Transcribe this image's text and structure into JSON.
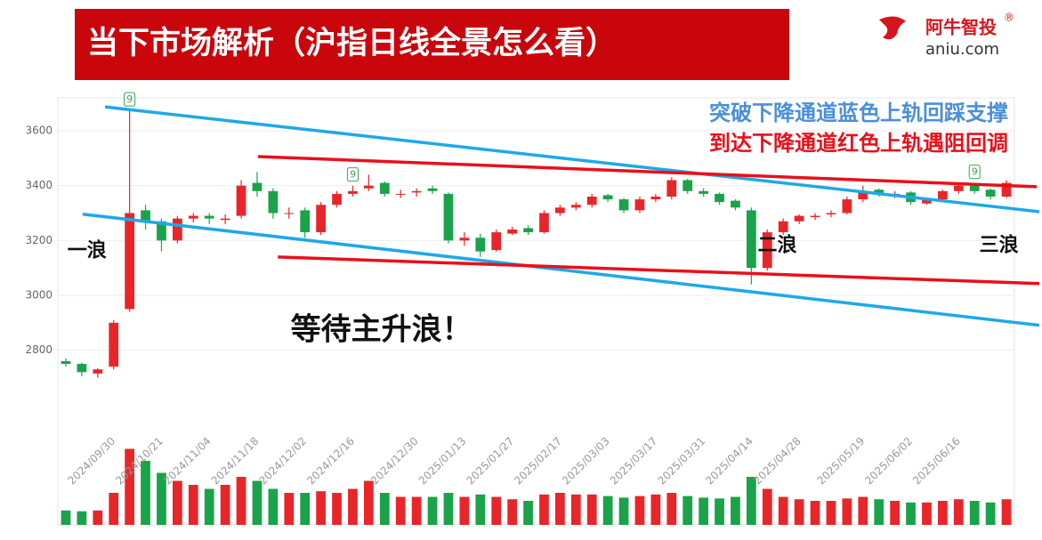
{
  "header": {
    "title": "当下市场解析（沪指日线全景怎么看）",
    "logo": "阿牛智投",
    "logo_mark": "®",
    "site": "aniu.com"
  },
  "chart_data": {
    "type": "candlestick",
    "categories": [
      null,
      null,
      null,
      "2024/09/30",
      null,
      null,
      "2024/10/21",
      null,
      null,
      "2024/11/04",
      null,
      null,
      "2024/11/18",
      null,
      null,
      "2024/12/02",
      null,
      null,
      "2024/12/16",
      null,
      null,
      null,
      "2024/12/30",
      null,
      null,
      "2025/01/13",
      null,
      null,
      "2025/01/27",
      null,
      null,
      "2025/02/17",
      null,
      null,
      "2025/03/03",
      null,
      null,
      "2025/03/17",
      null,
      null,
      "2025/03/31",
      null,
      null,
      "2025/04/14",
      null,
      null,
      "2025/04/28",
      null,
      null,
      null,
      "2025/05/19",
      null,
      null,
      "2025/06/02",
      null,
      null,
      "2025/06/16",
      null,
      null,
      null
    ],
    "open": [
      2760,
      2750,
      2715,
      2740,
      2950,
      3310,
      3270,
      3200,
      3280,
      3290,
      3275,
      3290,
      3410,
      3380,
      3300,
      3310,
      3230,
      3330,
      3370,
      3390,
      3410,
      3370,
      3375,
      3390,
      3370,
      3200,
      3210,
      3165,
      3225,
      3245,
      3230,
      3300,
      3320,
      3330,
      3365,
      3350,
      3310,
      3350,
      3360,
      3420,
      3380,
      3370,
      3345,
      3310,
      3100,
      3230,
      3270,
      3285,
      3295,
      3300,
      3350,
      3385,
      3370,
      3375,
      3335,
      3350,
      3380,
      3400,
      3385,
      3360
    ],
    "high": [
      2770,
      2755,
      2735,
      2910,
      3674,
      3330,
      3280,
      3290,
      3300,
      3300,
      3295,
      3420,
      3450,
      3390,
      3320,
      3320,
      3340,
      3380,
      3400,
      3440,
      3415,
      3385,
      3390,
      3400,
      3375,
      3230,
      3225,
      3240,
      3250,
      3255,
      3310,
      3330,
      3340,
      3370,
      3370,
      3355,
      3360,
      3370,
      3430,
      3425,
      3390,
      3375,
      3350,
      3320,
      3240,
      3280,
      3295,
      3300,
      3310,
      3360,
      3400,
      3390,
      3380,
      3380,
      3355,
      3385,
      3410,
      3410,
      3390,
      3420
    ],
    "low": [
      2740,
      2705,
      2700,
      2730,
      2940,
      3240,
      3160,
      3190,
      3265,
      3260,
      3260,
      3280,
      3360,
      3280,
      3280,
      3210,
      3220,
      3320,
      3360,
      3380,
      3360,
      3355,
      3360,
      3370,
      3190,
      3180,
      3140,
      3160,
      3220,
      3220,
      3225,
      3290,
      3310,
      3320,
      3340,
      3300,
      3300,
      3340,
      3350,
      3370,
      3360,
      3330,
      3310,
      3040,
      3090,
      3220,
      3260,
      3275,
      3285,
      3295,
      3340,
      3360,
      3355,
      3330,
      3330,
      3345,
      3370,
      3370,
      3350,
      3355
    ],
    "close": [
      2750,
      2720,
      2730,
      2900,
      3300,
      3270,
      3200,
      3280,
      3290,
      3280,
      3280,
      3400,
      3380,
      3300,
      3300,
      3230,
      3330,
      3370,
      3380,
      3400,
      3370,
      3370,
      3380,
      3380,
      3200,
      3210,
      3160,
      3230,
      3240,
      3230,
      3300,
      3320,
      3330,
      3360,
      3350,
      3310,
      3350,
      3360,
      3420,
      3380,
      3370,
      3340,
      3320,
      3100,
      3230,
      3270,
      3290,
      3290,
      3300,
      3350,
      3380,
      3370,
      3370,
      3340,
      3350,
      3380,
      3400,
      3380,
      3360,
      3410
    ],
    "volume": [
      18,
      17,
      18,
      40,
      95,
      80,
      65,
      55,
      50,
      45,
      50,
      60,
      55,
      45,
      40,
      40,
      42,
      40,
      45,
      55,
      40,
      35,
      35,
      35,
      40,
      35,
      38,
      35,
      32,
      30,
      38,
      40,
      38,
      38,
      36,
      34,
      36,
      38,
      40,
      36,
      34,
      33,
      35,
      60,
      45,
      35,
      32,
      30,
      30,
      33,
      35,
      32,
      30,
      28,
      28,
      30,
      32,
      30,
      28,
      32
    ],
    "up_color": "#e8262a",
    "down_color": "#1aa34a",
    "ylim": [
      2520,
      3720
    ],
    "yticks": [
      2800,
      3000,
      3200,
      3400,
      3600
    ],
    "volume_lim": [
      0,
      100
    ],
    "grid": true,
    "markers": [
      {
        "index": 4,
        "label": "9"
      },
      {
        "index": 18,
        "label": "9"
      },
      {
        "index": 57,
        "label": "9"
      }
    ],
    "trend_lines": [
      {
        "color": "#1fa8e8",
        "x": [
          2.46,
          61.06
        ],
        "y": [
          3687,
          3305
        ]
      },
      {
        "color": "#1fa8e8",
        "x": [
          1.06,
          61.06
        ],
        "y": [
          3296,
          2891
        ]
      },
      {
        "color": "#e8101a",
        "x": [
          12.06,
          60.9
        ],
        "y": [
          3506,
          3396
        ]
      },
      {
        "color": "#e8101a",
        "x": [
          13.3,
          61.06
        ],
        "y": [
          3140,
          3043
        ]
      }
    ],
    "annotations": [
      {
        "text": "一浪",
        "x": 0.1,
        "y": 3160
      },
      {
        "text": "二浪",
        "x": 43.4,
        "y": 3180
      },
      {
        "text": "三浪",
        "x": 57.3,
        "y": 3180
      },
      {
        "text": "等待主升浪！",
        "x": 14.1,
        "y": 2870
      }
    ],
    "notes": [
      {
        "text": "突破下降通道蓝色上轨回踩支撑",
        "color": "#4a8fd8"
      },
      {
        "text": "到达下降通道红色上轨遇阻回调",
        "color": "#e8101a"
      }
    ]
  }
}
